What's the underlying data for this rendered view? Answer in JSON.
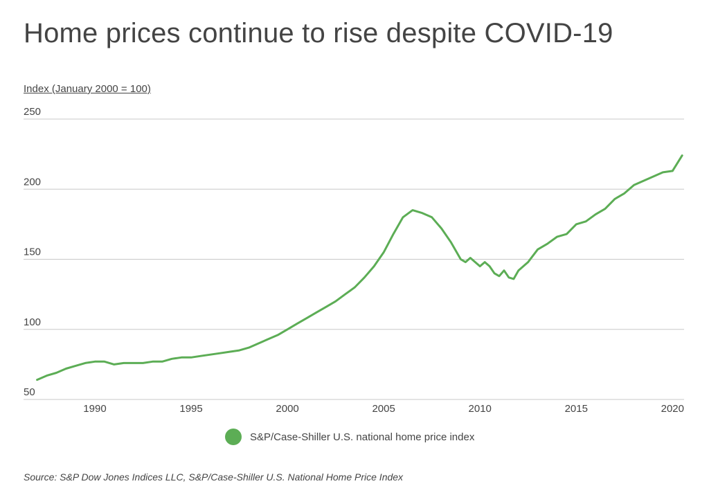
{
  "chart_data": {
    "type": "line",
    "title": "Home prices continue to rise despite COVID-19",
    "ylabel": "Index (January 2000 = 100)",
    "xlabel": "",
    "xlim": [
      1986.8,
      2020.6
    ],
    "ylim": [
      50,
      250
    ],
    "y_ticks": [
      250,
      200,
      150,
      100,
      50
    ],
    "x_ticks": [
      1990,
      1995,
      2000,
      2005,
      2010,
      2015,
      2020
    ],
    "grid": "horizontal",
    "legend_position": "bottom-center",
    "series": [
      {
        "name": "S&P/Case-Shiller U.S. national home price index",
        "color": "#5cad55",
        "x": [
          1987.0,
          1987.5,
          1988.0,
          1988.5,
          1989.0,
          1989.5,
          1990.0,
          1990.5,
          1991.0,
          1991.5,
          1992.0,
          1992.5,
          1993.0,
          1993.5,
          1994.0,
          1994.5,
          1995.0,
          1995.5,
          1996.0,
          1996.5,
          1997.0,
          1997.5,
          1998.0,
          1998.5,
          1999.0,
          1999.5,
          2000.0,
          2000.5,
          2001.0,
          2001.5,
          2002.0,
          2002.5,
          2003.0,
          2003.5,
          2004.0,
          2004.5,
          2005.0,
          2005.5,
          2006.0,
          2006.5,
          2007.0,
          2007.5,
          2008.0,
          2008.5,
          2009.0,
          2009.25,
          2009.5,
          2009.75,
          2010.0,
          2010.25,
          2010.5,
          2010.75,
          2011.0,
          2011.25,
          2011.5,
          2011.75,
          2012.0,
          2012.25,
          2012.5,
          2013.0,
          2013.5,
          2014.0,
          2014.5,
          2015.0,
          2015.5,
          2016.0,
          2016.5,
          2017.0,
          2017.5,
          2018.0,
          2018.5,
          2019.0,
          2019.5,
          2020.0,
          2020.5
        ],
        "values": [
          64,
          67,
          69,
          72,
          74,
          76,
          77,
          77,
          75,
          76,
          76,
          76,
          77,
          77,
          79,
          80,
          80,
          81,
          82,
          83,
          84,
          85,
          87,
          90,
          93,
          96,
          100,
          104,
          108,
          112,
          116,
          120,
          125,
          130,
          137,
          145,
          155,
          168,
          180,
          185,
          183,
          180,
          172,
          162,
          150,
          148,
          151,
          148,
          145,
          148,
          145,
          140,
          138,
          142,
          137,
          136,
          142,
          145,
          148,
          157,
          161,
          166,
          168,
          175,
          177,
          182,
          186,
          193,
          197,
          203,
          206,
          209,
          212,
          213,
          224
        ]
      }
    ]
  },
  "source": "Source: S&P Dow Jones Indices LLC, S&P/Case-Shiller U.S. National Home Price Index"
}
